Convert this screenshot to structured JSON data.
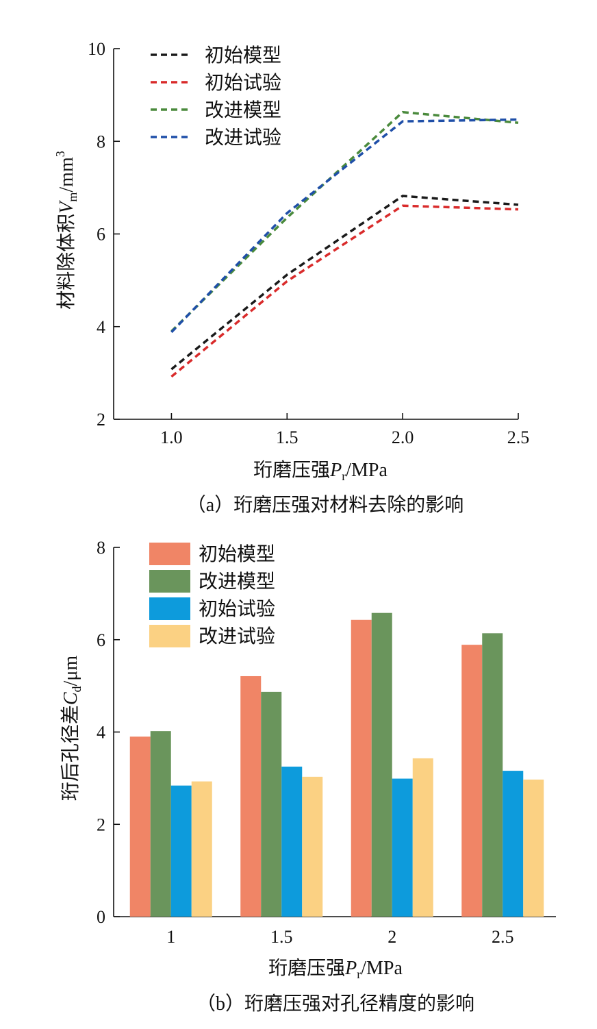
{
  "chart_data": [
    {
      "type": "line",
      "caption": "（a）珩磨压强对材料去除的影响",
      "xlabel": {
        "main": "珩磨压强",
        "var": "P",
        "sub": "r",
        "unit": "/MPa"
      },
      "ylabel": {
        "main": "材料除体积",
        "var": "V",
        "sub": "m",
        "unit": "/mm",
        "sup": "3"
      },
      "x": [
        1.0,
        1.5,
        2.0,
        2.5
      ],
      "xticks": [
        "1.0",
        "1.5",
        "2.0",
        "2.5"
      ],
      "xlim": [
        0.75,
        2.5
      ],
      "ylim": [
        2,
        10
      ],
      "yticks": [
        "2",
        "4",
        "6",
        "8",
        "10"
      ],
      "legend_position": "top-left",
      "series": [
        {
          "name": "初始模型",
          "color": "#1a1a1a",
          "values": [
            3.08,
            5.12,
            6.82,
            6.63
          ]
        },
        {
          "name": "初始试验",
          "color": "#d92b2b",
          "values": [
            2.92,
            4.98,
            6.61,
            6.53
          ]
        },
        {
          "name": "改进模型",
          "color": "#4a8a3c",
          "values": [
            3.9,
            6.35,
            8.63,
            8.4
          ]
        },
        {
          "name": "改进试验",
          "color": "#1f4fa8",
          "values": [
            3.88,
            6.45,
            8.43,
            8.47
          ]
        }
      ]
    },
    {
      "type": "bar",
      "caption": "（b）珩磨压强对孔径精度的影响",
      "xlabel": {
        "main": "珩磨压强",
        "var": "P",
        "sub": "r",
        "unit": "/MPa"
      },
      "ylabel": {
        "main": "珩后孔径差",
        "var": "C",
        "sub": "d",
        "unit": "/μm"
      },
      "categories": [
        "1",
        "1.5",
        "2",
        "2.5"
      ],
      "ylim": [
        0,
        8
      ],
      "yticks": [
        "0",
        "2",
        "4",
        "6",
        "8"
      ],
      "legend_position": "top-left",
      "series": [
        {
          "name": "初始模型",
          "color": "#f08566",
          "values": [
            3.9,
            5.21,
            6.43,
            5.89
          ]
        },
        {
          "name": "改进模型",
          "color": "#6a955c",
          "values": [
            4.02,
            4.87,
            6.58,
            6.14
          ]
        },
        {
          "name": "初始试验",
          "color": "#0d9bdc",
          "values": [
            2.84,
            3.25,
            2.99,
            3.16
          ]
        },
        {
          "name": "改进试验",
          "color": "#fbd183",
          "values": [
            2.93,
            3.03,
            3.43,
            2.97
          ]
        }
      ]
    }
  ]
}
